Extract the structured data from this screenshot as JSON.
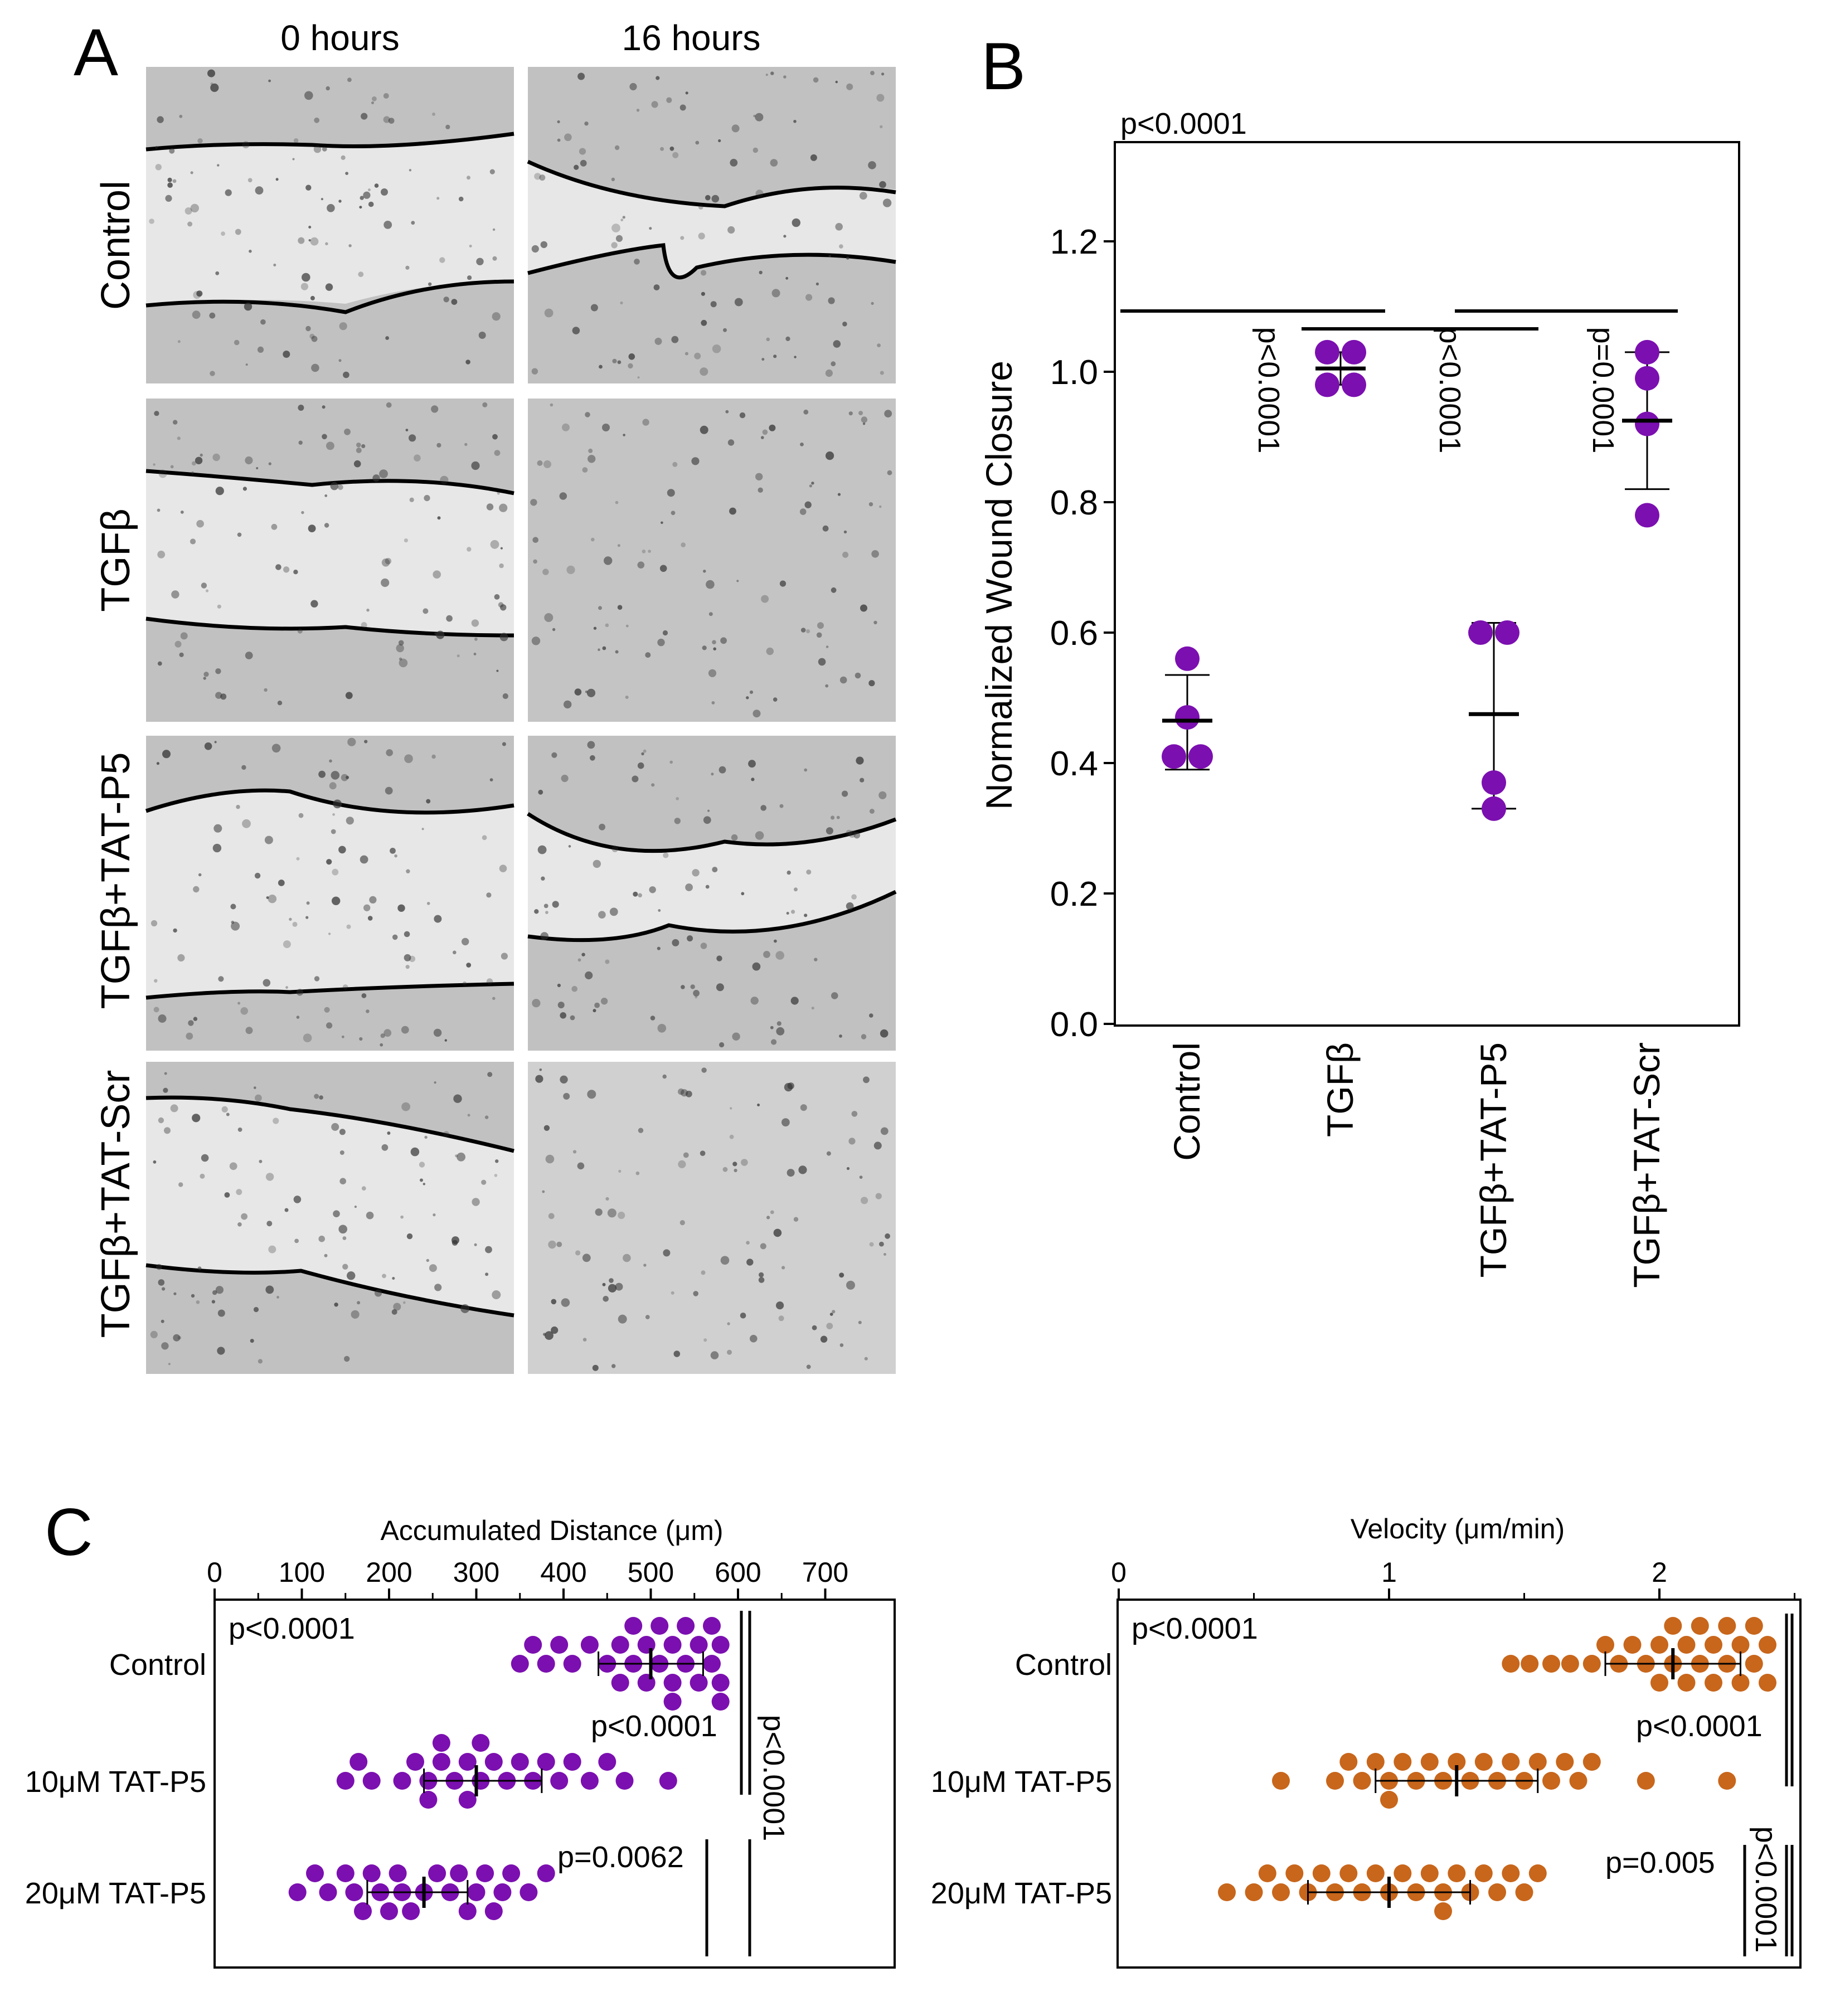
{
  "panel_labels": {
    "a": "A",
    "b": "B",
    "c": "C"
  },
  "panel_a": {
    "time_labels": [
      "0 hours",
      "16 hours"
    ],
    "row_labels": [
      "Control",
      "TGFβ",
      "TGFβ+TAT-P5",
      "TGFβ+TAT-Scr"
    ]
  },
  "colors": {
    "purple": "#7B0FB0",
    "orange": "#C8661B",
    "micro_bg": "#e7e7e7"
  },
  "chart_data": [
    {
      "type": "scatter",
      "panel": "B",
      "ylabel": "Normalized Wound Closure",
      "ylim": [
        0,
        1.35
      ],
      "yticks": [
        "0.0",
        "0.2",
        "0.4",
        "0.6",
        "0.8",
        "1.0",
        "1.2"
      ],
      "categories": [
        "Control",
        "TGFβ",
        "TGFβ+TAT-P5",
        "TGFβ+TAT-Scr"
      ],
      "points": [
        [
          0.56,
          0.47,
          0.41,
          0.41
        ],
        [
          1.03,
          1.03,
          0.98,
          0.98
        ],
        [
          0.6,
          0.6,
          0.37,
          0.33
        ],
        [
          1.03,
          0.99,
          0.92,
          0.78
        ]
      ],
      "means": [
        0.465,
        1.005,
        0.475,
        0.925
      ],
      "sd": [
        [
          0.39,
          0.535
        ],
        [
          0.98,
          1.03
        ],
        [
          0.33,
          0.615
        ],
        [
          0.82,
          1.03
        ]
      ],
      "stats": [
        "p<0.0001",
        "p<0.0001",
        "p<0.0001",
        "p=0.0001"
      ]
    },
    {
      "type": "scatter",
      "panel": "C-left",
      "xlabel": "Accumulated Distance (μm)",
      "xlim": [
        0,
        770
      ],
      "xticks": [
        "0",
        "100",
        "200",
        "300",
        "400",
        "500",
        "600",
        "700"
      ],
      "categories": [
        "Control",
        "10μM TAT-P5",
        "20μM TAT-P5"
      ],
      "points": [
        [
          350,
          365,
          380,
          395,
          410,
          430,
          450,
          465,
          465,
          480,
          480,
          495,
          495,
          510,
          510,
          525,
          525,
          525,
          540,
          540,
          555,
          555,
          570,
          570,
          580,
          580,
          580
        ],
        [
          150,
          165,
          180,
          215,
          230,
          245,
          245,
          260,
          260,
          275,
          290,
          290,
          305,
          305,
          320,
          335,
          350,
          365,
          380,
          395,
          410,
          430,
          450,
          470,
          520
        ],
        [
          95,
          115,
          130,
          150,
          160,
          170,
          180,
          190,
          200,
          210,
          215,
          225,
          240,
          255,
          270,
          280,
          290,
          300,
          310,
          320,
          330,
          340,
          360,
          380
        ]
      ],
      "means": [
        500,
        300,
        240
      ],
      "sd": [
        [
          440,
          560
        ],
        [
          240,
          375
        ],
        [
          175,
          290
        ]
      ],
      "stats": [
        "p<0.0001",
        "p<0.0001",
        "p=0.0062",
        "p<0.0001"
      ]
    },
    {
      "type": "scatter",
      "panel": "C-right",
      "xlabel": "Velocity (μm/min)",
      "xlim": [
        0,
        2.5
      ],
      "xticks": [
        "0",
        "1",
        "2"
      ],
      "categories": [
        "Control",
        "10μM TAT-P5",
        "20μM TAT-P5"
      ],
      "points": [
        [
          1.45,
          1.52,
          1.6,
          1.67,
          1.75,
          1.8,
          1.85,
          1.9,
          1.95,
          2.0,
          2.0,
          2.05,
          2.05,
          2.1,
          2.1,
          2.15,
          2.15,
          2.2,
          2.2,
          2.25,
          2.25,
          2.3,
          2.3,
          2.35,
          2.35,
          2.4,
          2.4
        ],
        [
          0.6,
          0.8,
          0.85,
          0.9,
          0.95,
          1.0,
          1.0,
          1.05,
          1.1,
          1.15,
          1.2,
          1.25,
          1.3,
          1.35,
          1.4,
          1.45,
          1.5,
          1.55,
          1.6,
          1.65,
          1.7,
          1.75,
          1.95,
          2.25
        ],
        [
          0.4,
          0.5,
          0.55,
          0.6,
          0.65,
          0.7,
          0.75,
          0.8,
          0.85,
          0.9,
          0.95,
          1.0,
          1.05,
          1.1,
          1.15,
          1.2,
          1.2,
          1.25,
          1.3,
          1.35,
          1.4,
          1.45,
          1.5,
          1.55
        ]
      ],
      "means": [
        2.05,
        1.25,
        1.0
      ],
      "sd": [
        [
          1.8,
          2.3
        ],
        [
          0.95,
          1.55
        ],
        [
          0.7,
          1.3
        ]
      ],
      "stats": [
        "p<0.0001",
        "p<0.0001",
        "p=0.005",
        "p<0.0001"
      ]
    }
  ]
}
